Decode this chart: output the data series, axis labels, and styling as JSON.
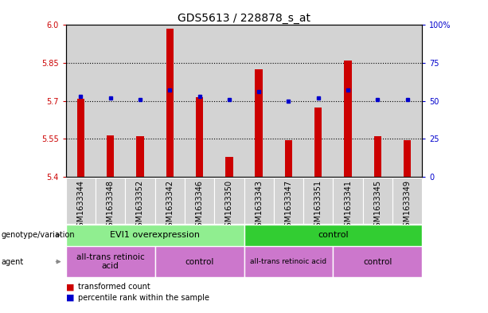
{
  "title": "GDS5613 / 228878_s_at",
  "samples": [
    "GSM1633344",
    "GSM1633348",
    "GSM1633352",
    "GSM1633342",
    "GSM1633346",
    "GSM1633350",
    "GSM1633343",
    "GSM1633347",
    "GSM1633351",
    "GSM1633341",
    "GSM1633345",
    "GSM1633349"
  ],
  "transformed_count": [
    5.71,
    5.565,
    5.56,
    5.985,
    5.715,
    5.48,
    5.825,
    5.545,
    5.675,
    5.86,
    5.56,
    5.545
  ],
  "percentile_rank": [
    53,
    52,
    51,
    57,
    53,
    51,
    56,
    50,
    52,
    57,
    51,
    51
  ],
  "ymin": 5.4,
  "ymax": 6.0,
  "yticks_left": [
    5.4,
    5.55,
    5.7,
    5.85,
    6.0
  ],
  "yticks_right": [
    0,
    25,
    50,
    75,
    100
  ],
  "bar_color": "#cc0000",
  "marker_color": "#0000cc",
  "col_bg_even": "#d3d3d3",
  "col_bg_odd": "#e8e8e8",
  "plot_bg_color": "#ffffff",
  "left_axis_color": "#cc0000",
  "right_axis_color": "#0000cc",
  "genotype_colors": [
    "#90ee90",
    "#32cd32"
  ],
  "agent_color": "#cc77cc",
  "title_fontsize": 10,
  "tick_fontsize": 7,
  "sample_fontsize": 7
}
